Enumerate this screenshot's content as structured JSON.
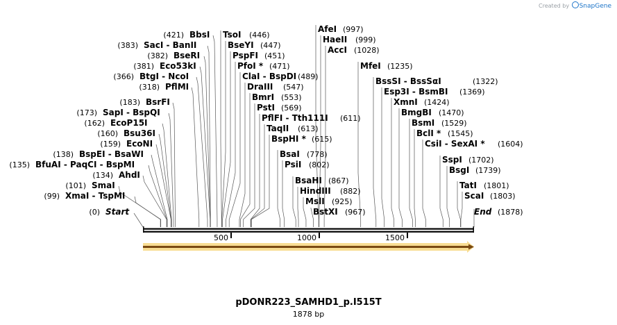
{
  "brand": {
    "prefix": "Created by",
    "name": "SnapGene"
  },
  "plasmid": {
    "name": "pDONR223_SAMHD1_p.I515T",
    "length_label": "1878 bp",
    "length": 1878
  },
  "ruler_ticks": [
    {
      "pos": 500,
      "label": "500"
    },
    {
      "pos": 1000,
      "label": "1000"
    },
    {
      "pos": 1500,
      "label": "1500"
    }
  ],
  "feature": {
    "type": "orf-arrow",
    "color": "#f3c13a"
  },
  "sites": [
    {
      "name": "Start",
      "pos_label": "(0)",
      "cut": 0,
      "special": true,
      "side": "left"
    },
    {
      "name": "XmaI  -  TspMI",
      "pos_label": "(99)",
      "cut": 99,
      "side": "left"
    },
    {
      "name": "SmaI",
      "pos_label": "(101)",
      "cut": 101,
      "side": "left"
    },
    {
      "name": "AhdI",
      "pos_label": "(134)",
      "cut": 134,
      "side": "left"
    },
    {
      "name": "BfuAI  -  PaqCI  -  BspMI",
      "pos_label": "(135)",
      "cut": 135,
      "side": "left"
    },
    {
      "name": "BspEI  -  BsaWI",
      "pos_label": "(138)",
      "cut": 138,
      "side": "left"
    },
    {
      "name": "EcoNI",
      "pos_label": "(159)",
      "cut": 159,
      "side": "left"
    },
    {
      "name": "Bsu36I",
      "pos_label": "(160)",
      "cut": 160,
      "side": "left"
    },
    {
      "name": "EcoP15I",
      "pos_label": "(162)",
      "cut": 162,
      "side": "left"
    },
    {
      "name": "SapI  -  BspQI",
      "pos_label": "(173)",
      "cut": 173,
      "side": "left"
    },
    {
      "name": "BsrFI",
      "pos_label": "(183)",
      "cut": 183,
      "side": "left"
    },
    {
      "name": "PflMI",
      "pos_label": "(318)",
      "cut": 318,
      "side": "left"
    },
    {
      "name": "BtgI  -  NcoI",
      "pos_label": "(366)",
      "cut": 366,
      "side": "left"
    },
    {
      "name": "Eco53kI",
      "pos_label": "(381)",
      "cut": 381,
      "side": "left"
    },
    {
      "name": "BseRI",
      "pos_label": "(382)",
      "cut": 382,
      "side": "left"
    },
    {
      "name": "SacI  -  BanII",
      "pos_label": "(383)",
      "cut": 383,
      "side": "left"
    },
    {
      "name": "BbsI",
      "pos_label": "(421)",
      "cut": 421,
      "side": "left"
    },
    {
      "name": "TsoI",
      "pos_label": "(446)",
      "cut": 446,
      "side": "right"
    },
    {
      "name": "BseYI",
      "pos_label": "(447)",
      "cut": 447,
      "side": "right"
    },
    {
      "name": "PspFI",
      "pos_label": "(451)",
      "cut": 451,
      "side": "right"
    },
    {
      "name": "PfoI *",
      "pos_label": "(471)",
      "cut": 471,
      "side": "right"
    },
    {
      "name": "ClaI  -  BspDI",
      "pos_label": "(489)",
      "cut": 489,
      "side": "right"
    },
    {
      "name": "DraIII",
      "pos_label": "(547)",
      "cut": 547,
      "side": "right"
    },
    {
      "name": "BmrI",
      "pos_label": "(553)",
      "cut": 553,
      "side": "right"
    },
    {
      "name": "PstI",
      "pos_label": "(569)",
      "cut": 569,
      "side": "right"
    },
    {
      "name": "PflFI  -  Tth111I",
      "pos_label": "(611)",
      "cut": 611,
      "side": "right"
    },
    {
      "name": "TaqII",
      "pos_label": "(613)",
      "cut": 613,
      "side": "right"
    },
    {
      "name": "BspHI *",
      "pos_label": "(615)",
      "cut": 615,
      "side": "right"
    },
    {
      "name": "BsaI",
      "pos_label": "(778)",
      "cut": 778,
      "side": "right"
    },
    {
      "name": "PsiI",
      "pos_label": "(802)",
      "cut": 802,
      "side": "right"
    },
    {
      "name": "BsaHI",
      "pos_label": "(867)",
      "cut": 867,
      "side": "right"
    },
    {
      "name": "HindIII",
      "pos_label": "(882)",
      "cut": 882,
      "side": "right"
    },
    {
      "name": "MslI",
      "pos_label": "(925)",
      "cut": 925,
      "side": "right"
    },
    {
      "name": "BstXI",
      "pos_label": "(967)",
      "cut": 967,
      "side": "right"
    },
    {
      "name": "AfeI",
      "pos_label": "(997)",
      "cut": 997,
      "side": "right"
    },
    {
      "name": "HaeII",
      "pos_label": "(999)",
      "cut": 999,
      "side": "right"
    },
    {
      "name": "AccI",
      "pos_label": "(1028)",
      "cut": 1028,
      "side": "right"
    },
    {
      "name": "MfeI",
      "pos_label": "(1235)",
      "cut": 1235,
      "side": "right"
    },
    {
      "name": "BssSI  -  BssSαI",
      "pos_label": "(1322)",
      "cut": 1322,
      "side": "right"
    },
    {
      "name": "Esp3I  -  BsmBI",
      "pos_label": "(1369)",
      "cut": 1369,
      "side": "right"
    },
    {
      "name": "XmnI",
      "pos_label": "(1424)",
      "cut": 1424,
      "side": "right"
    },
    {
      "name": "BmgBI",
      "pos_label": "(1470)",
      "cut": 1470,
      "side": "right"
    },
    {
      "name": "BsmI",
      "pos_label": "(1529)",
      "cut": 1529,
      "side": "right"
    },
    {
      "name": "BclI *",
      "pos_label": "(1545)",
      "cut": 1545,
      "side": "right"
    },
    {
      "name": "CsiI  -  SexAI *",
      "pos_label": "(1604)",
      "cut": 1604,
      "side": "right"
    },
    {
      "name": "SspI",
      "pos_label": "(1702)",
      "cut": 1702,
      "side": "right"
    },
    {
      "name": "BsgI",
      "pos_label": "(1739)",
      "cut": 1739,
      "side": "right"
    },
    {
      "name": "TatI",
      "pos_label": "(1801)",
      "cut": 1801,
      "side": "right"
    },
    {
      "name": "ScaI",
      "pos_label": "(1803)",
      "cut": 1803,
      "side": "right"
    },
    {
      "name": "End",
      "pos_label": "(1878)",
      "cut": 1878,
      "special": true,
      "side": "right"
    }
  ]
}
